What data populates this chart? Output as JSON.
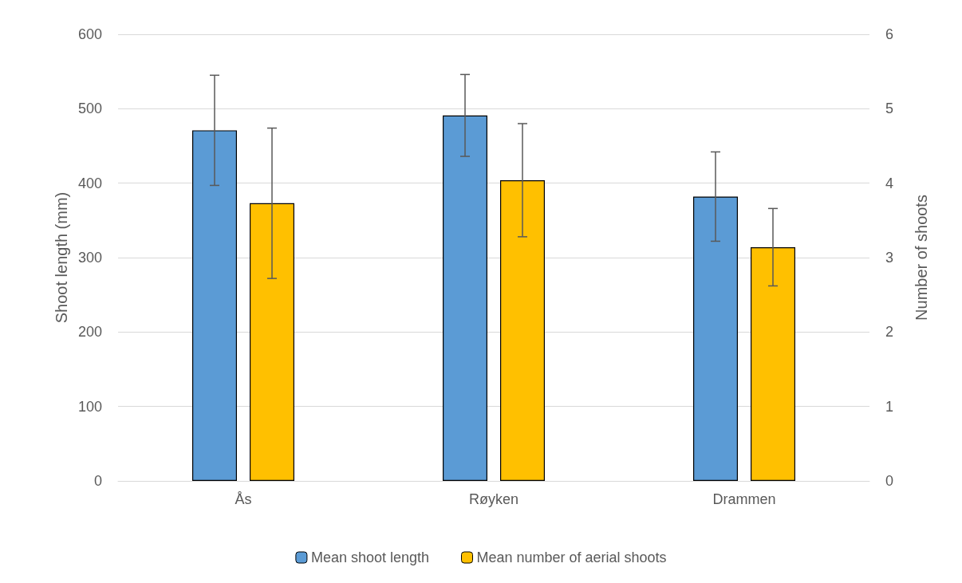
{
  "chart_data": {
    "type": "bar",
    "categories": [
      "Ås",
      "Røyken",
      "Drammen"
    ],
    "ylabel": "Shoot length (mm)",
    "y2label": "Number of shoots",
    "ylim": [
      0,
      600
    ],
    "yticks": [
      0,
      100,
      200,
      300,
      400,
      500,
      600
    ],
    "y2lim": [
      0,
      6
    ],
    "y2ticks": [
      0,
      1,
      2,
      3,
      4,
      5,
      6
    ],
    "grid": "y",
    "legend": "bottom",
    "series": [
      {
        "name": "Mean shoot length",
        "color": "#5b9bd5",
        "values": [
          471,
          491,
          382
        ],
        "errors": [
          [
            397,
            545
          ],
          [
            436,
            546
          ],
          [
            322,
            442
          ]
        ]
      },
      {
        "name": "Mean number of aerial shoots",
        "color": "#ffc000",
        "axis": "y2",
        "values": [
          3.73,
          4.04,
          3.14
        ],
        "errors": [
          [
            2.72,
            4.74
          ],
          [
            3.28,
            4.8
          ],
          [
            2.62,
            3.66
          ]
        ]
      }
    ]
  }
}
